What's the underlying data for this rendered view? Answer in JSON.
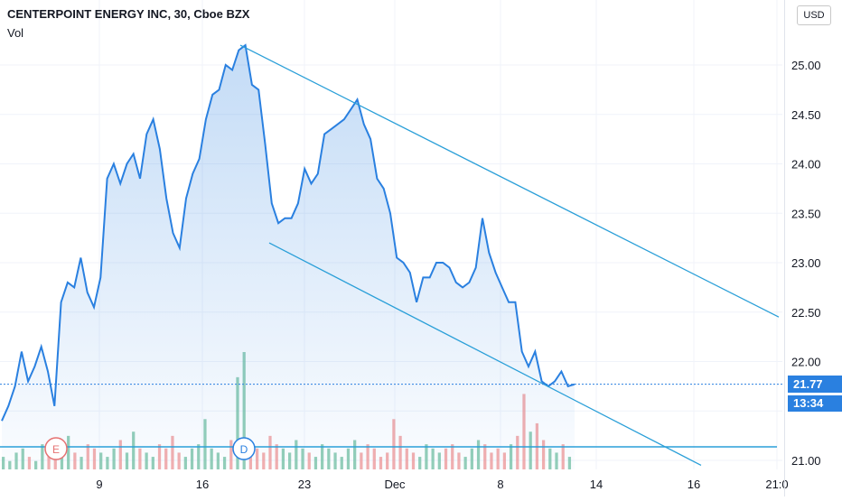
{
  "header": {
    "title": "CENTERPOINT ENERGY INC, 30, Cboe BZX",
    "volume_label": "Vol"
  },
  "price_scale": {
    "currency": "USD",
    "ticks": [
      "25.00",
      "24.50",
      "24.00",
      "23.50",
      "23.00",
      "22.50",
      "22.00",
      "21.00"
    ],
    "last_price": "21.77",
    "countdown": "13:34"
  },
  "time_scale": {
    "ticks": [
      "9",
      "16",
      "23",
      "Dec",
      "8",
      "14",
      "16",
      "21:0"
    ]
  },
  "markers": [
    {
      "letter": "E",
      "color": "#e57373"
    },
    {
      "letter": "D",
      "color": "#2a80e0"
    }
  ],
  "colors": {
    "line": "#2a80e0",
    "trend": "#2a9fd8",
    "vol_up": "#66bb9a",
    "vol_down": "#ef8d8d"
  },
  "chart_data": {
    "type": "line",
    "title": "CENTERPOINT ENERGY INC, 30, Cboe BZX",
    "ylim": [
      21.0,
      25.3
    ],
    "series": [
      {
        "values": [
          21.4,
          21.55,
          21.75,
          22.1,
          21.8,
          21.95,
          22.15,
          21.9,
          21.55,
          22.6,
          22.8,
          22.75,
          23.05,
          22.7,
          22.55,
          22.85,
          23.85,
          24.0,
          23.8,
          24.0,
          24.1,
          23.85,
          24.3,
          24.45,
          24.15,
          23.65,
          23.3,
          23.15,
          23.65,
          23.9,
          24.05,
          24.45,
          24.7,
          24.75,
          25.0,
          24.95,
          25.15,
          25.2,
          24.8,
          24.75,
          24.2,
          23.6,
          23.4,
          23.45,
          23.45,
          23.6,
          23.95,
          23.8,
          23.9,
          24.3,
          24.35,
          24.4,
          24.45,
          24.55,
          24.65,
          24.4,
          24.25,
          23.85,
          23.75,
          23.5,
          23.05,
          23.0,
          22.9,
          22.6,
          22.85,
          22.85,
          23.0,
          23.0,
          22.95,
          22.8,
          22.75,
          22.8,
          22.95,
          23.45,
          23.1,
          22.9,
          22.75,
          22.6,
          22.6,
          22.1,
          21.95,
          22.1,
          21.8,
          21.75,
          21.8,
          21.9,
          21.75,
          21.77
        ]
      }
    ],
    "trendlines": [
      {
        "name": "upper",
        "x": [
          "Nov 18",
          "Dec 21"
        ],
        "y": [
          25.2,
          22.45
        ]
      },
      {
        "name": "lower",
        "x": [
          "Nov 19",
          "Dec 16"
        ],
        "y": [
          23.2,
          20.95
        ]
      }
    ],
    "volume_baseline_note": "",
    "volume": [
      3,
      2,
      4,
      5,
      3,
      2,
      6,
      4,
      3,
      5,
      8,
      4,
      3,
      6,
      5,
      4,
      3,
      5,
      7,
      4,
      9,
      5,
      4,
      3,
      6,
      5,
      8,
      4,
      3,
      5,
      6,
      12,
      5,
      4,
      3,
      7,
      22,
      28,
      6,
      5,
      4,
      8,
      6,
      5,
      4,
      7,
      5,
      4,
      3,
      6,
      5,
      4,
      3,
      5,
      7,
      4,
      6,
      5,
      3,
      4,
      12,
      8,
      5,
      4,
      3,
      6,
      5,
      4,
      5,
      6,
      4,
      3,
      5,
      7,
      6,
      4,
      5,
      4,
      6,
      8,
      18,
      9,
      11,
      7,
      5,
      4,
      6,
      3
    ]
  }
}
